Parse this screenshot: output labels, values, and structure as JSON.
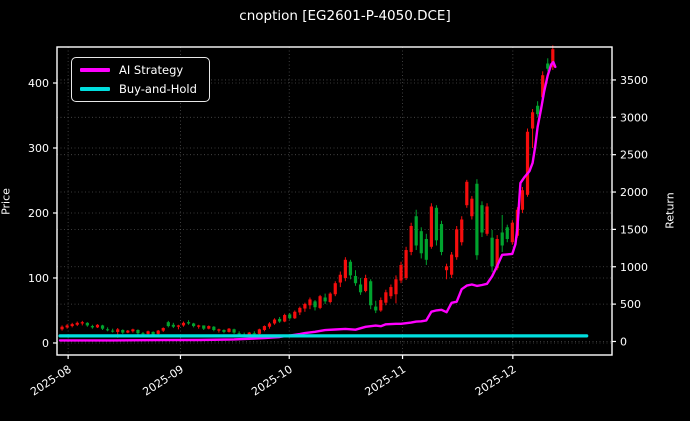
{
  "title": "cnoption [EG2601-P-4050.DCE]",
  "legend": {
    "items": [
      {
        "label": "AI Strategy",
        "color": "#ff00ff"
      },
      {
        "label": "Buy-and-Hold",
        "color": "#00dede"
      }
    ]
  },
  "axes": {
    "x": {
      "tick_labels": [
        "2025-08",
        "2025-09",
        "2025-10",
        "2025-11",
        "2025-12"
      ],
      "tick_pos": [
        1.2,
        23.4,
        44.9,
        67.3,
        89.1
      ],
      "lim": [
        -1,
        108.7
      ]
    },
    "price": {
      "label": "Price",
      "ticks": [
        0,
        100,
        200,
        300,
        400
      ],
      "lim": [
        -18.5,
        455.4
      ]
    },
    "return": {
      "label": "Return",
      "ticks": [
        0,
        500,
        1000,
        1500,
        2000,
        2500,
        3000,
        3500
      ],
      "lim": [
        -181,
        3941
      ]
    }
  },
  "chart_data": {
    "type": "candlestick+line",
    "title": "cnoption [EG2601-P-4050.DCE]",
    "x_axis": "trading days 2025-08 .. 2025-12",
    "up_color": "#f50d0d",
    "down_color": "#00a32e",
    "grid": true,
    "candles_ohlc": [
      [
        21,
        27,
        19,
        25
      ],
      [
        24,
        29,
        22,
        27
      ],
      [
        26,
        31,
        24,
        29
      ],
      [
        28,
        33,
        26,
        31
      ],
      [
        30,
        34,
        27,
        32
      ],
      [
        31,
        32,
        25,
        27
      ],
      [
        26,
        28,
        22,
        24
      ],
      [
        24,
        29,
        23,
        28
      ],
      [
        27,
        28,
        20,
        22
      ],
      [
        21,
        24,
        18,
        20
      ],
      [
        19,
        22,
        16,
        18
      ],
      [
        17,
        23,
        8,
        21
      ],
      [
        20,
        21,
        14,
        16
      ],
      [
        16,
        20,
        15,
        19
      ],
      [
        18,
        22,
        16,
        21
      ],
      [
        20,
        21,
        13,
        15
      ],
      [
        15,
        17,
        12,
        14
      ],
      [
        14,
        19,
        13,
        18
      ],
      [
        17,
        18,
        12,
        13
      ],
      [
        14,
        20,
        13,
        19
      ],
      [
        19,
        24,
        17,
        23
      ],
      [
        32,
        34,
        24,
        26
      ],
      [
        28,
        31,
        23,
        25
      ],
      [
        25,
        28,
        21,
        27
      ],
      [
        27,
        33,
        25,
        31
      ],
      [
        32,
        35,
        28,
        30
      ],
      [
        30,
        31,
        24,
        26
      ],
      [
        25,
        28,
        22,
        27
      ],
      [
        27,
        27,
        20,
        22
      ],
      [
        22,
        27,
        21,
        26
      ],
      [
        25,
        26,
        18,
        20
      ],
      [
        19,
        22,
        16,
        21
      ],
      [
        20,
        21,
        15,
        17
      ],
      [
        17,
        23,
        16,
        22
      ],
      [
        21,
        22,
        14,
        16
      ],
      [
        15,
        18,
        12,
        14
      ],
      [
        13,
        16,
        9,
        11
      ],
      [
        11,
        17,
        10,
        16
      ],
      [
        15,
        18,
        12,
        14
      ],
      [
        14,
        22,
        13,
        21
      ],
      [
        20,
        27,
        18,
        26
      ],
      [
        25,
        32,
        22,
        30
      ],
      [
        30,
        38,
        28,
        36
      ],
      [
        37,
        40,
        31,
        33
      ],
      [
        33,
        45,
        32,
        43
      ],
      [
        44,
        46,
        36,
        38
      ],
      [
        38,
        50,
        37,
        48
      ],
      [
        47,
        56,
        43,
        54
      ],
      [
        53,
        62,
        48,
        60
      ],
      [
        58,
        70,
        52,
        67
      ],
      [
        64,
        66,
        50,
        55
      ],
      [
        54,
        74,
        52,
        72
      ],
      [
        70,
        76,
        60,
        64
      ],
      [
        63,
        78,
        61,
        76
      ],
      [
        75,
        95,
        72,
        92
      ],
      [
        93,
        110,
        86,
        105
      ],
      [
        100,
        132,
        95,
        128
      ],
      [
        125,
        128,
        98,
        104
      ],
      [
        103,
        112,
        88,
        92
      ],
      [
        90,
        100,
        74,
        78
      ],
      [
        80,
        105,
        78,
        100
      ],
      [
        95,
        98,
        52,
        58
      ],
      [
        56,
        65,
        46,
        50
      ],
      [
        50,
        70,
        48,
        66
      ],
      [
        62,
        82,
        58,
        78
      ],
      [
        72,
        90,
        68,
        86
      ],
      [
        75,
        104,
        61,
        98
      ],
      [
        96,
        125,
        92,
        120
      ],
      [
        100,
        148,
        97,
        143
      ],
      [
        140,
        185,
        135,
        180
      ],
      [
        195,
        205,
        143,
        150
      ],
      [
        172,
        178,
        130,
        138
      ],
      [
        160,
        168,
        120,
        128
      ],
      [
        148,
        215,
        145,
        210
      ],
      [
        208,
        212,
        150,
        158
      ],
      [
        183,
        188,
        135,
        140
      ],
      [
        112,
        122,
        98,
        118
      ],
      [
        105,
        140,
        100,
        136
      ],
      [
        132,
        180,
        128,
        175
      ],
      [
        155,
        195,
        150,
        190
      ],
      [
        212,
        251,
        208,
        248
      ],
      [
        195,
        226,
        190,
        222
      ],
      [
        245,
        252,
        128,
        135
      ],
      [
        212,
        218,
        163,
        170
      ],
      [
        168,
        215,
        165,
        210
      ],
      [
        162,
        174,
        109,
        118
      ],
      [
        115,
        166,
        112,
        160
      ],
      [
        170,
        197,
        140,
        150
      ],
      [
        178,
        182,
        155,
        160
      ],
      [
        155,
        189,
        151,
        185
      ],
      [
        165,
        209,
        162,
        205
      ],
      [
        205,
        240,
        200,
        235
      ],
      [
        228,
        330,
        225,
        325
      ],
      [
        330,
        360,
        300,
        355
      ],
      [
        365,
        372,
        348,
        352
      ],
      [
        378,
        418,
        372,
        412
      ],
      [
        430,
        438,
        418,
        422
      ],
      [
        425,
        458,
        420,
        452
      ]
    ],
    "series": [
      {
        "name": "AI Strategy",
        "axis": "return",
        "color": "#ff00ff",
        "width": 2.4,
        "points": [
          [
            -0.4,
            15
          ],
          [
            10,
            15
          ],
          [
            20,
            18
          ],
          [
            27,
            20
          ],
          [
            34,
            28
          ],
          [
            40,
            45
          ],
          [
            43,
            60
          ],
          [
            45,
            80
          ],
          [
            47,
            100
          ],
          [
            48,
            112
          ],
          [
            50,
            130
          ],
          [
            52,
            152
          ],
          [
            54,
            160
          ],
          [
            56,
            168
          ],
          [
            58,
            158
          ],
          [
            60,
            196
          ],
          [
            61,
            205
          ],
          [
            62,
            212
          ],
          [
            63,
            205
          ],
          [
            64,
            230
          ],
          [
            66,
            236
          ],
          [
            67,
            236
          ],
          [
            68,
            245
          ],
          [
            69,
            252
          ],
          [
            70,
            266
          ],
          [
            71,
            270
          ],
          [
            72,
            282
          ],
          [
            73,
            398
          ],
          [
            74,
            416
          ],
          [
            75,
            424
          ],
          [
            76,
            392
          ],
          [
            77,
            518
          ],
          [
            78,
            532
          ],
          [
            79,
            700
          ],
          [
            80,
            748
          ],
          [
            81,
            762
          ],
          [
            82,
            744
          ],
          [
            83,
            756
          ],
          [
            84,
            772
          ],
          [
            85,
            872
          ],
          [
            86,
            1012
          ],
          [
            87,
            1160
          ],
          [
            88,
            1165
          ],
          [
            89,
            1172
          ],
          [
            89.6,
            1300
          ],
          [
            90,
            1520
          ],
          [
            90.6,
            2120
          ],
          [
            91.4,
            2200
          ],
          [
            92.4,
            2280
          ],
          [
            93,
            2390
          ],
          [
            93.5,
            2600
          ],
          [
            94,
            2870
          ],
          [
            94.7,
            3120
          ],
          [
            95.3,
            3350
          ],
          [
            96,
            3560
          ],
          [
            96.7,
            3710
          ],
          [
            97.1,
            3740
          ],
          [
            97.5,
            3675
          ]
        ]
      },
      {
        "name": "Buy-and-Hold",
        "axis": "return",
        "color": "#00dede",
        "width": 3.2,
        "points": [
          [
            -0.4,
            74
          ],
          [
            103.7,
            74
          ]
        ]
      }
    ]
  }
}
